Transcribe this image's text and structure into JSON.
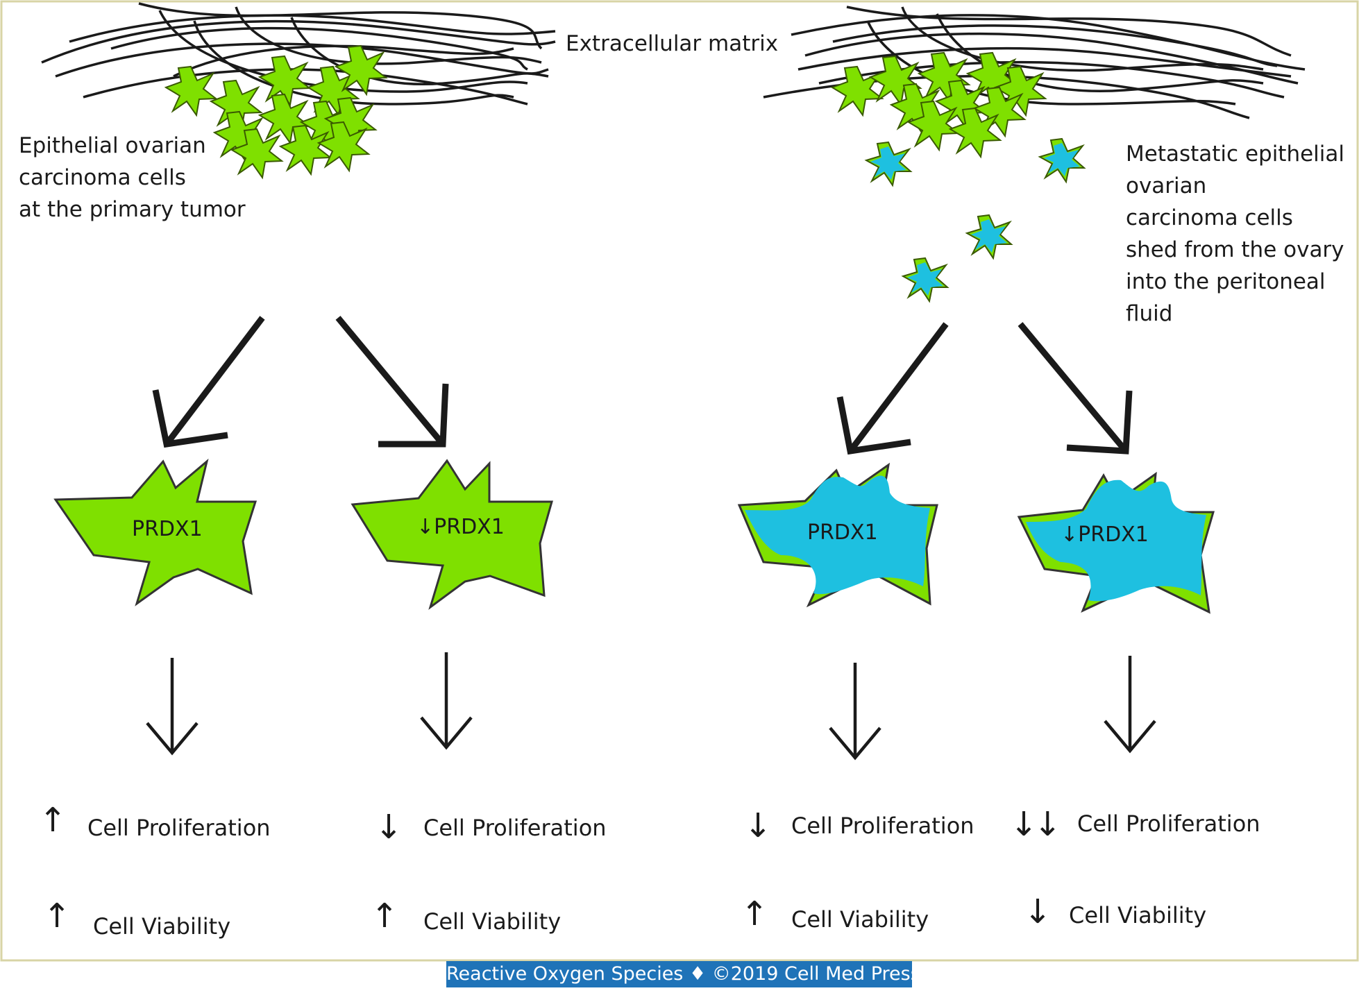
{
  "labels": {
    "ecm": "Extracellular matrix",
    "primary": [
      "Epithelial ovarian",
      "carcinoma cells",
      "at the primary tumor"
    ],
    "metastatic": [
      "Metastatic epithelial",
      "ovarian",
      "carcinoma cells",
      "shed from the ovary",
      "into the peritoneal",
      "fluid"
    ]
  },
  "cells": [
    {
      "prdx": "PRDX1",
      "prdx_arrow": "",
      "prolif_arrow": "↑",
      "prolif": "Cell Proliferation",
      "viab_arrow": "↑",
      "viab": "Cell Viability",
      "fill": "#7fe000"
    },
    {
      "prdx": "PRDX1",
      "prdx_arrow": "↓",
      "prolif_arrow": "↓",
      "prolif": "Cell Proliferation",
      "viab_arrow": "↑",
      "viab": "Cell Viability",
      "fill": "#7fe000"
    },
    {
      "prdx": "PRDX1",
      "prdx_arrow": "",
      "prolif_arrow": "↓",
      "prolif": "Cell Proliferation",
      "viab_arrow": "↑",
      "viab": "Cell Viability",
      "fill": "#1ec0e0"
    },
    {
      "prdx": "PRDX1",
      "prdx_arrow": "↓",
      "prolif_arrow": "↓↓",
      "prolif": "Cell Proliferation",
      "viab_arrow": "↓",
      "viab": "Cell Viability",
      "fill": "#1ec0e0"
    }
  ],
  "caption": "Reactive Oxygen Species ♦ ©2019 Cell Med Press",
  "colors": {
    "green_cell": "#7fe000",
    "blue_cell": "#1ec0e0",
    "border": "#d8d4a6",
    "caption_bg": "#1f73b8"
  }
}
